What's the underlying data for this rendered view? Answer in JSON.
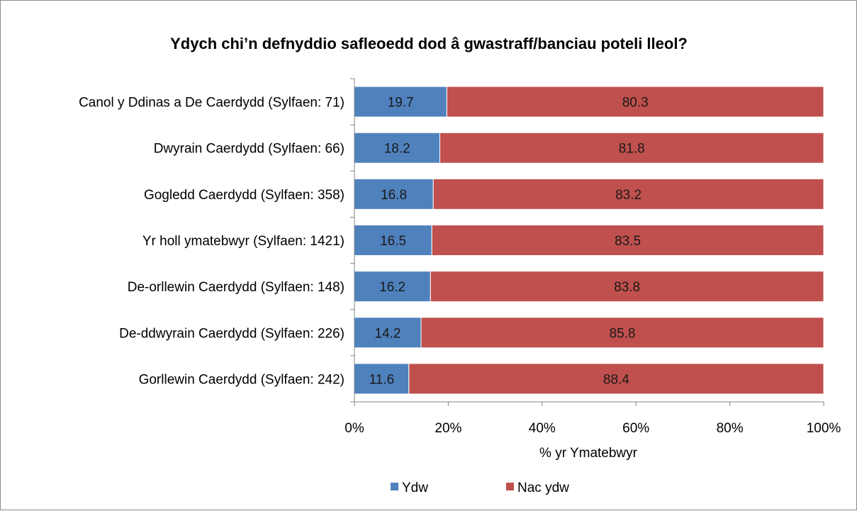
{
  "chart_data": {
    "type": "bar",
    "orientation": "horizontal",
    "stacked": "percent",
    "title": "Ydych chi’n defnyddio safleoedd dod â gwastraff/banciau poteli lleol?",
    "xlabel": "% yr Ymatebwyr",
    "ylabel": "",
    "xlim": [
      0,
      100
    ],
    "x_ticks": [
      "0%",
      "20%",
      "40%",
      "60%",
      "80%",
      "100%"
    ],
    "x_tick_values": [
      0,
      20,
      40,
      60,
      80,
      100
    ],
    "grid": false,
    "legend_position": "bottom",
    "categories": [
      "Canol y Ddinas a De Caerdydd (Sylfaen: 71)",
      "Dwyrain Caerdydd (Sylfaen: 66)",
      "Gogledd Caerdydd (Sylfaen: 358)",
      "Yr holl ymatebwyr (Sylfaen: 1421)",
      "De-orllewin Caerdydd (Sylfaen: 148)",
      "De-ddwyrain Caerdydd (Sylfaen: 226)",
      "Gorllewin Caerdydd (Sylfaen: 242)"
    ],
    "series": [
      {
        "name": "Ydw",
        "color": "#4f81bd",
        "values": [
          19.7,
          18.2,
          16.8,
          16.5,
          16.2,
          14.2,
          11.6
        ],
        "labels": [
          "19.7",
          "18.2",
          "16.8",
          "16.5",
          "16.2",
          "14.2",
          "11.6"
        ]
      },
      {
        "name": "Nac ydw",
        "color": "#c0504d",
        "values": [
          80.3,
          81.8,
          83.2,
          83.5,
          83.8,
          85.8,
          88.4
        ],
        "labels": [
          "80.3",
          "81.8",
          "83.2",
          "83.5",
          "83.8",
          "85.8",
          "88.4"
        ]
      }
    ]
  }
}
